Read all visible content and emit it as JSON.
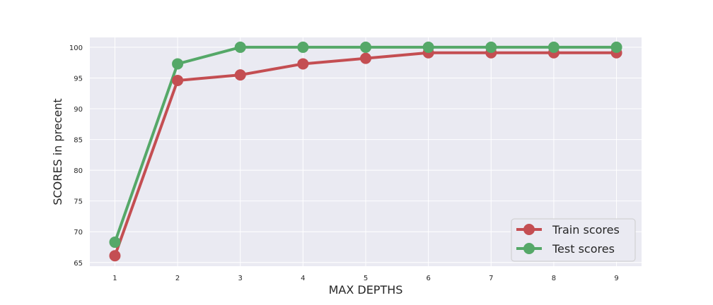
{
  "chart_data": {
    "type": "line",
    "title": "",
    "xlabel": "MAX DEPTHS",
    "ylabel": "SCORES in precent",
    "x": [
      1,
      2,
      3,
      4,
      5,
      6,
      7,
      8,
      9
    ],
    "xticks": [
      "1",
      "2",
      "3",
      "4",
      "5",
      "6",
      "7",
      "8",
      "9"
    ],
    "yticks": [
      "65",
      "70",
      "75",
      "80",
      "85",
      "90",
      "95",
      "100"
    ],
    "ylim": [
      64.4,
      101.6
    ],
    "xlim": [
      0.6,
      9.4
    ],
    "grid": true,
    "legend_position": "bottom-right",
    "series": [
      {
        "name": "Train scores",
        "color": "#c44e52",
        "values": [
          66.1,
          94.6,
          95.5,
          97.3,
          98.2,
          99.1,
          99.1,
          99.1,
          99.1
        ]
      },
      {
        "name": "Test scores",
        "color": "#55a868",
        "values": [
          68.3,
          97.3,
          100,
          100,
          100,
          100,
          100,
          100,
          100
        ]
      }
    ]
  }
}
